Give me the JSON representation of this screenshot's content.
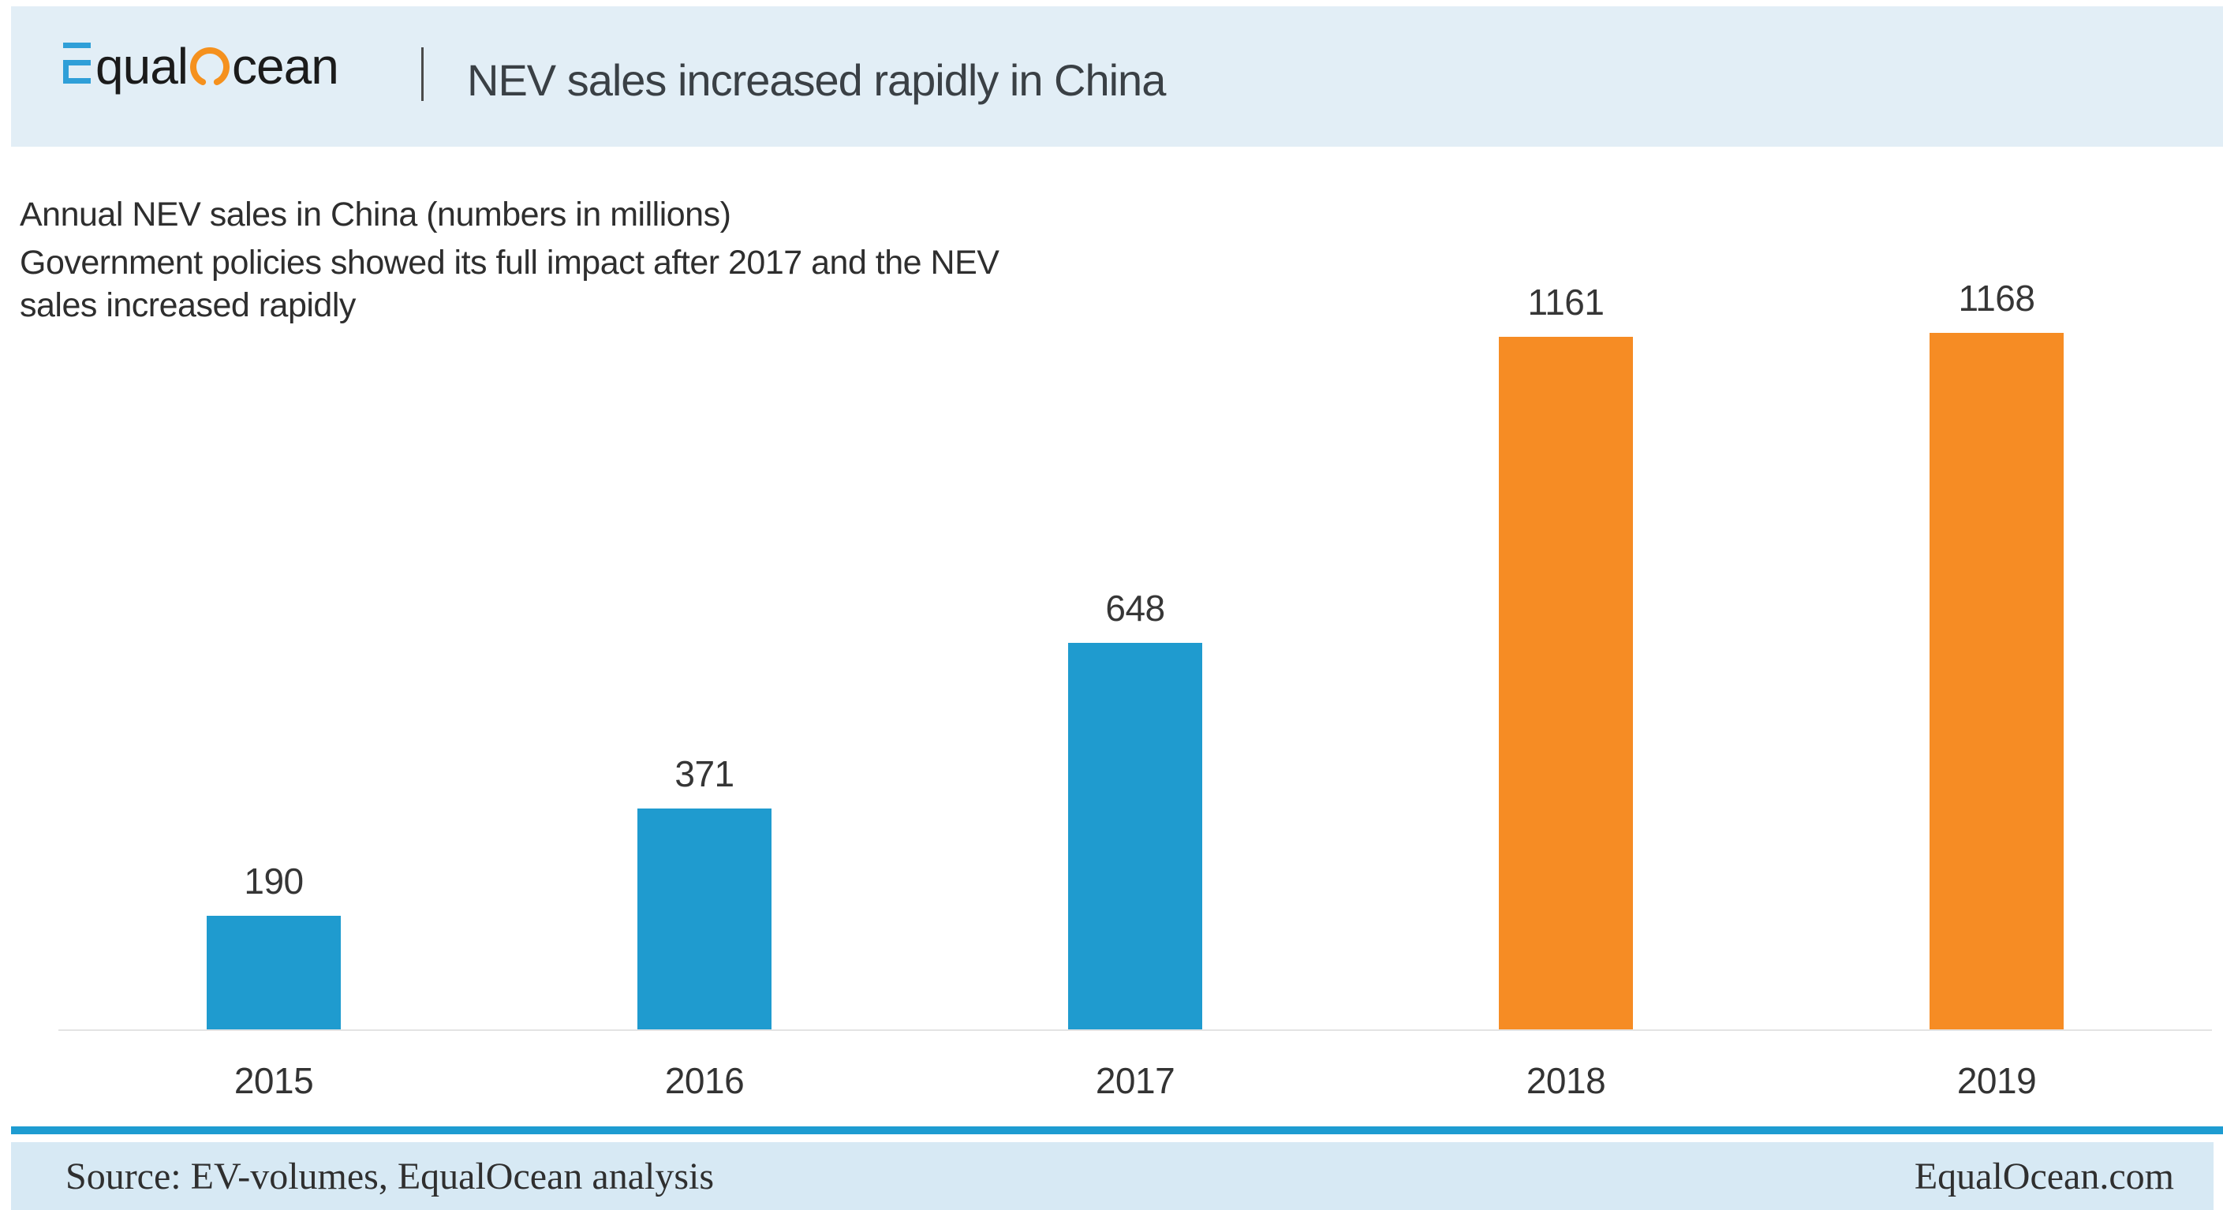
{
  "header": {
    "logo": {
      "part1": "qual",
      "part2": "cean",
      "e_color": "#2F9FD8",
      "o_color": "#F5911E",
      "text_color": "#1B1B1B"
    },
    "title": "NEV sales increased rapidly in China"
  },
  "main": {
    "subtitle": "Annual NEV sales in China (numbers in millions)",
    "annotation": [
      "Government policies showed its full impact after 2017 and the NEV",
      "sales increased rapidly"
    ]
  },
  "chart_data": {
    "type": "bar",
    "title": "Annual NEV sales in China (numbers in millions)",
    "categories": [
      "2015",
      "2016",
      "2017",
      "2018",
      "2019"
    ],
    "values": [
      190,
      371,
      648,
      1161,
      1168
    ],
    "series": [
      {
        "name": "Annual NEV sales in China",
        "values": [
          190,
          371,
          648,
          1161,
          1168
        ]
      }
    ],
    "xlabel": "",
    "ylabel": "",
    "ylim": [
      0,
      1270
    ],
    "grid": false,
    "legend": "none",
    "value_labels": true,
    "bar_colors": [
      "#1F9BCF",
      "#1F9BCF",
      "#1F9BCF",
      "#F68C24",
      "#F68C24"
    ],
    "axis_line_color": "#E3E3E3",
    "annotation_note": "Government policies showed its full impact after 2017 and the NEV sales increased rapidly"
  },
  "footer": {
    "source_label": "Source:",
    "source_text": "EV-volumes, EqualOcean analysis",
    "site": "EqualOcean.com"
  },
  "colors": {
    "header_bg": "#E2EEF6",
    "footer_bg": "#D7E9F4",
    "footer_rule": "#1E9CD1",
    "bar_blue": "#1F9BCF",
    "bar_orange": "#F68C24",
    "title_text": "#3A4045",
    "body_text": "#2E2E2E"
  }
}
